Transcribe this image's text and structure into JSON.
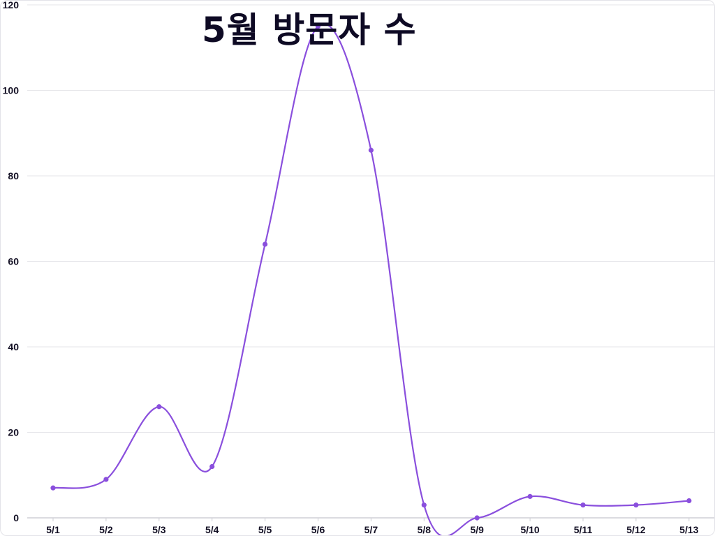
{
  "chart_data": {
    "type": "line",
    "title": "5월 방문자 수",
    "categories": [
      "5/1",
      "5/2",
      "5/3",
      "5/4",
      "5/5",
      "5/6",
      "5/7",
      "5/8",
      "5/9",
      "5/10",
      "5/11",
      "5/12",
      "5/13"
    ],
    "series": [
      {
        "values": [
          7,
          9,
          26,
          12,
          64,
          115,
          86,
          3,
          0,
          5,
          3,
          3,
          4
        ]
      }
    ],
    "ylim": [
      0,
      120
    ],
    "yticks": [
      0,
      20,
      40,
      60,
      80,
      100,
      120
    ],
    "line_style": "smooth",
    "grid": true,
    "legend": "none",
    "colors": {
      "line": "#8a4fdd",
      "marker": "#8a4fdd",
      "grid": "#e6e6ea",
      "axis": "#cfcfd6",
      "title": "#0e0a24",
      "tick": "#141125"
    }
  }
}
